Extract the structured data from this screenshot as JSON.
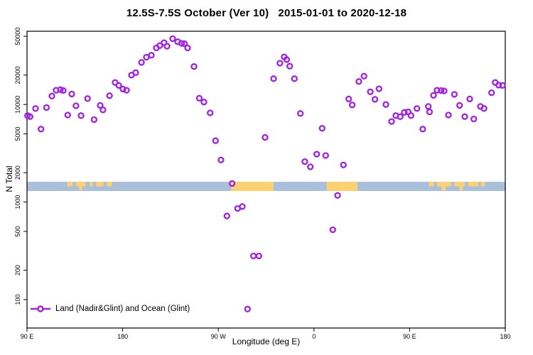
{
  "title": "12.5S-7.5S October (Ver 10)   2015-01-01 to 2020-12-18",
  "legend": {
    "label": "Land (Nadir&Glint) and Ocean (Glint)"
  },
  "colors": {
    "marker": "#A020F0",
    "ocean": "#A9BFDC",
    "land": "#FBD171",
    "frame": "#000000",
    "text": "#000000"
  },
  "chart_data": {
    "type": "scatter",
    "title": "12.5S-7.5S October (Ver 10)   2015-01-01 to 2020-12-18",
    "xlabel": "Longitude (deg E)",
    "ylabel": "N Total",
    "grid": false,
    "legend_position": "bottom-left inside plot",
    "x_axis": {
      "note": "longitude wraps eastward from 90E; deg is degrees east of 0 measured continuously 90..540",
      "span_deg": [
        90,
        540
      ],
      "ticks": [
        {
          "deg": 90,
          "label": "90 E"
        },
        {
          "deg": 180,
          "label": "180"
        },
        {
          "deg": 270,
          "label": "90 W"
        },
        {
          "deg": 360,
          "label": "0"
        },
        {
          "deg": 450,
          "label": "90 E"
        },
        {
          "deg": 540,
          "label": "180"
        }
      ]
    },
    "y_axis": {
      "scale": "log",
      "range": [
        51,
        56000
      ],
      "ticks": [
        100,
        200,
        500,
        1000,
        2000,
        5000,
        10000,
        20000,
        50000
      ]
    },
    "series": [
      {
        "name": "Land (Nadir&Glint) and Ocean (Glint)",
        "marker": "open-circle",
        "color": "#A020F0",
        "points": [
          [
            90.5,
            7700
          ],
          [
            92.9,
            7500
          ],
          [
            98,
            9100
          ],
          [
            103.2,
            5600
          ],
          [
            108.3,
            9300
          ],
          [
            113.4,
            12200
          ],
          [
            117.4,
            14000
          ],
          [
            121.4,
            14200
          ],
          [
            124.1,
            13900
          ],
          [
            128.3,
            7800
          ],
          [
            132.1,
            12800
          ],
          [
            136.1,
            9700
          ],
          [
            140.8,
            7700
          ],
          [
            147,
            11500
          ],
          [
            153.1,
            7000
          ],
          [
            158.9,
            9800
          ],
          [
            161.5,
            8800
          ],
          [
            167.6,
            12300
          ],
          [
            172.9,
            16800
          ],
          [
            176.3,
            15700
          ],
          [
            180.3,
            14400
          ],
          [
            183.6,
            14000
          ],
          [
            188.3,
            20000
          ],
          [
            192.3,
            21200
          ],
          [
            197.7,
            27000
          ],
          [
            202.3,
            30500
          ],
          [
            207,
            32000
          ],
          [
            211.7,
            38000
          ],
          [
            215,
            40200
          ],
          [
            219,
            43000
          ],
          [
            221.7,
            39600
          ],
          [
            227.1,
            47300
          ],
          [
            231.8,
            44000
          ],
          [
            235.4,
            42300
          ],
          [
            238.1,
            42000
          ],
          [
            241.1,
            38000
          ],
          [
            247.1,
            24500
          ],
          [
            252.1,
            11600
          ],
          [
            256.5,
            10600
          ],
          [
            262.3,
            8200
          ],
          [
            267.4,
            4250
          ],
          [
            272.5,
            2700
          ],
          [
            278.1,
            720
          ],
          [
            283,
            1550
          ],
          [
            288.1,
            860
          ],
          [
            292.6,
            900
          ],
          [
            297.5,
            80
          ],
          [
            303.1,
            280
          ],
          [
            308.2,
            280
          ],
          [
            314,
            4600
          ],
          [
            322,
            18400
          ],
          [
            328,
            26500
          ],
          [
            332,
            30800
          ],
          [
            334.3,
            28900
          ],
          [
            337.2,
            24700
          ],
          [
            341.6,
            18400
          ],
          [
            347.2,
            8100
          ],
          [
            351.4,
            2600
          ],
          [
            356.6,
            2300
          ],
          [
            362.6,
            3100
          ],
          [
            367.7,
            5700
          ],
          [
            371,
            3000
          ],
          [
            377.7,
            520
          ],
          [
            382.2,
            1170
          ],
          [
            387.7,
            2400
          ],
          [
            392.7,
            11400
          ],
          [
            396,
            9900
          ],
          [
            402.2,
            17200
          ],
          [
            407.1,
            19500
          ],
          [
            413,
            13500
          ],
          [
            417.4,
            11300
          ],
          [
            421.2,
            14500
          ],
          [
            427.7,
            10000
          ],
          [
            433,
            6700
          ],
          [
            437,
            7700
          ],
          [
            441.2,
            7500
          ],
          [
            445,
            8300
          ],
          [
            448.6,
            8400
          ],
          [
            451.3,
            7700
          ],
          [
            456.9,
            9100
          ],
          [
            462.4,
            5600
          ],
          [
            467.6,
            9550
          ],
          [
            468.7,
            8400
          ],
          [
            472.5,
            12400
          ],
          [
            475.8,
            14000
          ],
          [
            479.6,
            13900
          ],
          [
            482.5,
            13800
          ],
          [
            486.5,
            7800
          ],
          [
            492.1,
            12700
          ],
          [
            497,
            9800
          ],
          [
            501.9,
            7500
          ],
          [
            506.6,
            11400
          ],
          [
            510.4,
            7100
          ],
          [
            516.6,
            9550
          ],
          [
            520,
            9100
          ],
          [
            527.1,
            13200
          ],
          [
            530.5,
            16800
          ],
          [
            533.8,
            15800
          ],
          [
            537.4,
            15700
          ]
        ]
      }
    ],
    "land_ocean_strip": {
      "description": "horizontal map strip showing ocean (blue) and land (orange) along the longitude band",
      "value_band": [
        1300,
        1650
      ],
      "ocean_color": "#A9BFDC",
      "land_color": "#FBD171",
      "land_segments_deg": [
        [
          282,
          322
        ],
        [
          372,
          401
        ]
      ],
      "island_speckles_deg_upper": [
        [
          128,
          133
        ],
        [
          136,
          145
        ],
        [
          149,
          152
        ],
        [
          155,
          162
        ],
        [
          165,
          170
        ],
        [
          468,
          473
        ],
        [
          476,
          489
        ],
        [
          492,
          502
        ],
        [
          505,
          515
        ],
        [
          517,
          521
        ]
      ],
      "island_speckles_deg_lower": [
        [
          139,
          142
        ],
        [
          480,
          484
        ],
        [
          497,
          500
        ]
      ]
    }
  }
}
